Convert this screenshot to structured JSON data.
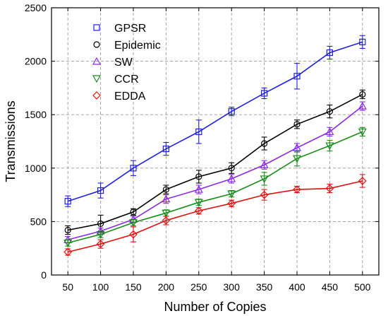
{
  "chart_data": {
    "type": "line",
    "xlabel": "Number of Copies",
    "ylabel": "Transmissions",
    "xlim": [
      25,
      525
    ],
    "ylim": [
      0,
      2500
    ],
    "x_ticks": [
      50,
      100,
      150,
      200,
      250,
      300,
      350,
      400,
      450,
      500
    ],
    "y_ticks": [
      0,
      500,
      1000,
      1500,
      2000,
      2500
    ],
    "x": [
      50,
      100,
      150,
      200,
      250,
      300,
      350,
      400,
      450,
      500
    ],
    "grid": "dashed vertical and horizontal",
    "legend_position": "top-left",
    "series": [
      {
        "name": "GPSR",
        "marker": "square",
        "color": "#1f1fe0",
        "values": [
          690,
          790,
          1000,
          1180,
          1340,
          1530,
          1700,
          1860,
          2080,
          2180
        ],
        "errors": [
          50,
          70,
          70,
          60,
          110,
          40,
          50,
          120,
          60,
          60
        ]
      },
      {
        "name": "Epidemic",
        "marker": "circle",
        "color": "#000000",
        "values": [
          420,
          480,
          590,
          800,
          920,
          1000,
          1230,
          1410,
          1530,
          1690
        ],
        "errors": [
          40,
          80,
          30,
          40,
          60,
          50,
          60,
          40,
          60,
          40
        ]
      },
      {
        "name": "SW",
        "marker": "triangle-up",
        "color": "#8a2be2",
        "values": [
          330,
          410,
          520,
          710,
          800,
          900,
          1030,
          1190,
          1340,
          1580
        ],
        "errors": [
          30,
          30,
          30,
          40,
          40,
          40,
          40,
          40,
          40,
          40
        ]
      },
      {
        "name": "CCR",
        "marker": "triangle-down",
        "color": "#1a8a1a",
        "values": [
          300,
          380,
          490,
          580,
          680,
          760,
          900,
          1090,
          1210,
          1340
        ],
        "errors": [
          30,
          30,
          30,
          30,
          30,
          30,
          60,
          70,
          50,
          40
        ]
      },
      {
        "name": "EDDA",
        "marker": "diamond",
        "color": "#e01010",
        "values": [
          215,
          290,
          380,
          510,
          600,
          670,
          750,
          800,
          810,
          880
        ],
        "errors": [
          30,
          40,
          70,
          40,
          30,
          30,
          50,
          30,
          40,
          60
        ]
      }
    ]
  }
}
